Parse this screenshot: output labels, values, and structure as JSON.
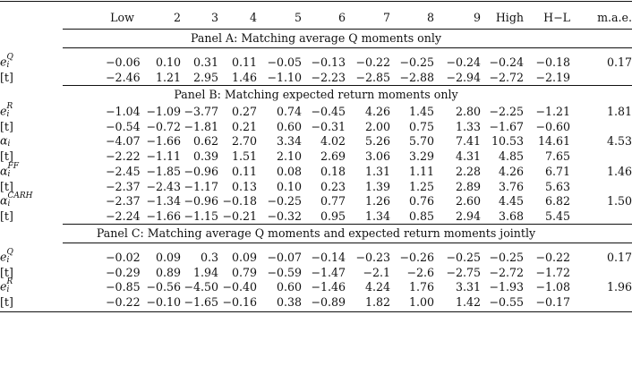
{
  "columns": [
    "Low",
    "2",
    "3",
    "4",
    "5",
    "6",
    "7",
    "8",
    "9",
    "High",
    "H−L",
    "m.a.e."
  ],
  "panels": [
    {
      "title": "Panel A: Matching average Q moments only",
      "rows": [
        {
          "sym": "e",
          "sup": "Q",
          "sub": "i",
          "values": [
            "−0.06",
            "0.10",
            "0.31",
            "0.11",
            "−0.05",
            "−0.13",
            "−0.22",
            "−0.25",
            "−0.24",
            "−0.24",
            "−0.18",
            "0.17"
          ]
        },
        {
          "label": "[t]",
          "values": [
            "−2.46",
            "1.21",
            "2.95",
            "1.46",
            "−1.10",
            "−2.23",
            "−2.85",
            "−2.88",
            "−2.94",
            "−2.72",
            "−2.19",
            ""
          ]
        }
      ]
    },
    {
      "title": "Panel B: Matching expected return moments only",
      "rows": [
        {
          "sym": "e",
          "sup": "R",
          "sub": "i",
          "values": [
            "−1.04",
            "−1.09",
            "−3.77",
            "0.27",
            "0.74",
            "−0.45",
            "4.26",
            "1.45",
            "2.80",
            "−2.25",
            "−1.21",
            "1.81"
          ]
        },
        {
          "label": "[t]",
          "values": [
            "−0.54",
            "−0.72",
            "−1.81",
            "0.21",
            "0.60",
            "−0.31",
            "2.00",
            "0.75",
            "1.33",
            "−1.67",
            "−0.60",
            ""
          ]
        },
        {
          "sym": "α",
          "sup": "",
          "sub": "i",
          "values": [
            "−4.07",
            "−1.66",
            "0.62",
            "2.70",
            "3.34",
            "4.02",
            "5.26",
            "5.70",
            "7.41",
            "10.53",
            "14.61",
            "4.53"
          ]
        },
        {
          "label": "[t]",
          "values": [
            "−2.22",
            "−1.11",
            "0.39",
            "1.51",
            "2.10",
            "2.69",
            "3.06",
            "3.29",
            "4.31",
            "4.85",
            "7.65",
            ""
          ]
        },
        {
          "sym": "α",
          "sup": "FF",
          "sub": "i",
          "values": [
            "−2.45",
            "−1.85",
            "−0.96",
            "0.11",
            "0.08",
            "0.18",
            "1.31",
            "1.11",
            "2.28",
            "4.26",
            "6.71",
            "1.46"
          ]
        },
        {
          "label": "[t]",
          "values": [
            "−2.37",
            "−2.43",
            "−1.17",
            "0.13",
            "0.10",
            "0.23",
            "1.39",
            "1.25",
            "2.89",
            "3.76",
            "5.63",
            ""
          ]
        },
        {
          "sym": "α",
          "sup": "CARH",
          "sub": "i",
          "values": [
            "−2.37",
            "−1.34",
            "−0.96",
            "−0.18",
            "−0.25",
            "0.77",
            "1.26",
            "0.76",
            "2.60",
            "4.45",
            "6.82",
            "1.50"
          ]
        },
        {
          "label": "[t]",
          "values": [
            "−2.24",
            "−1.66",
            "−1.15",
            "−0.21",
            "−0.32",
            "0.95",
            "1.34",
            "0.85",
            "2.94",
            "3.68",
            "5.45",
            ""
          ]
        }
      ]
    },
    {
      "title": "Panel C: Matching average Q moments and expected return moments jointly",
      "rows": [
        {
          "sym": "e",
          "sup": "Q",
          "sub": "i",
          "values": [
            "−0.02",
            "0.09",
            "0.3",
            "0.09",
            "−0.07",
            "−0.14",
            "−0.23",
            "−0.26",
            "−0.25",
            "−0.25",
            "−0.22",
            "0.17"
          ]
        },
        {
          "label": "[t]",
          "values": [
            "−0.29",
            "0.89",
            "1.94",
            "0.79",
            "−0.59",
            "−1.47",
            "−2.1",
            "−2.6",
            "−2.75",
            "−2.72",
            "−1.72",
            ""
          ]
        },
        {
          "sym": "e",
          "sup": "R",
          "sub": "i",
          "values": [
            "−0.85",
            "−0.56",
            "−4.50",
            "−0.40",
            "0.60",
            "−1.46",
            "4.24",
            "1.76",
            "3.31",
            "−1.93",
            "−1.08",
            "1.96"
          ]
        },
        {
          "label": "[t]",
          "values": [
            "−0.22",
            "−0.10",
            "−1.65",
            "−0.16",
            "0.38",
            "−0.89",
            "1.82",
            "1.00",
            "1.42",
            "−0.55",
            "−0.17",
            ""
          ]
        }
      ]
    }
  ]
}
